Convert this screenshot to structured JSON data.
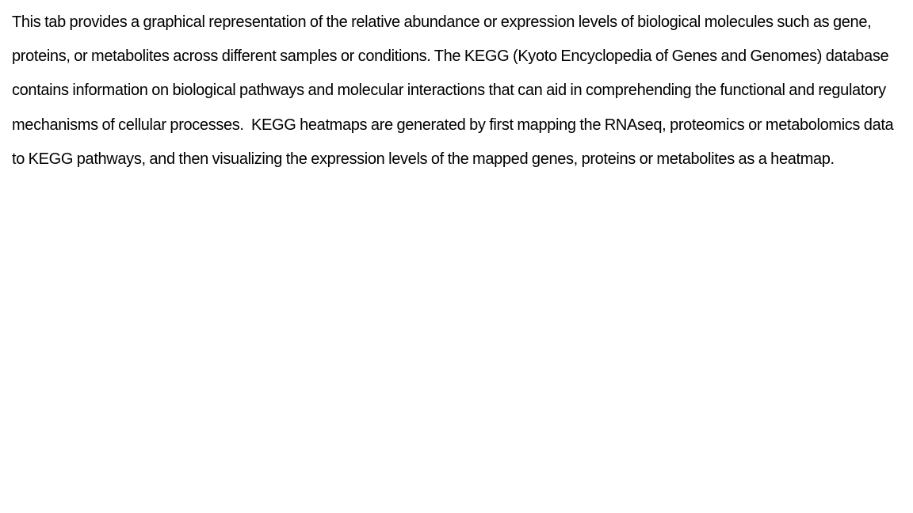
{
  "content": {
    "paragraph": "This tab provides a graphical representation of the relative abundance or expression levels of biological molecules such as gene, proteins, or metabolites across different samples or conditions. The KEGG (Kyoto Encyclopedia of Genes and Genomes) database contains information on biological pathways and molecular interactions that can aid in comprehending the functional and regulatory mechanisms of cellular processes.  KEGG heatmaps are generated by first mapping the RNAseq, proteomics or metabolomics data to KEGG pathways, and then visualizing the expression levels of the mapped genes, proteins or metabolites as a heatmap."
  }
}
